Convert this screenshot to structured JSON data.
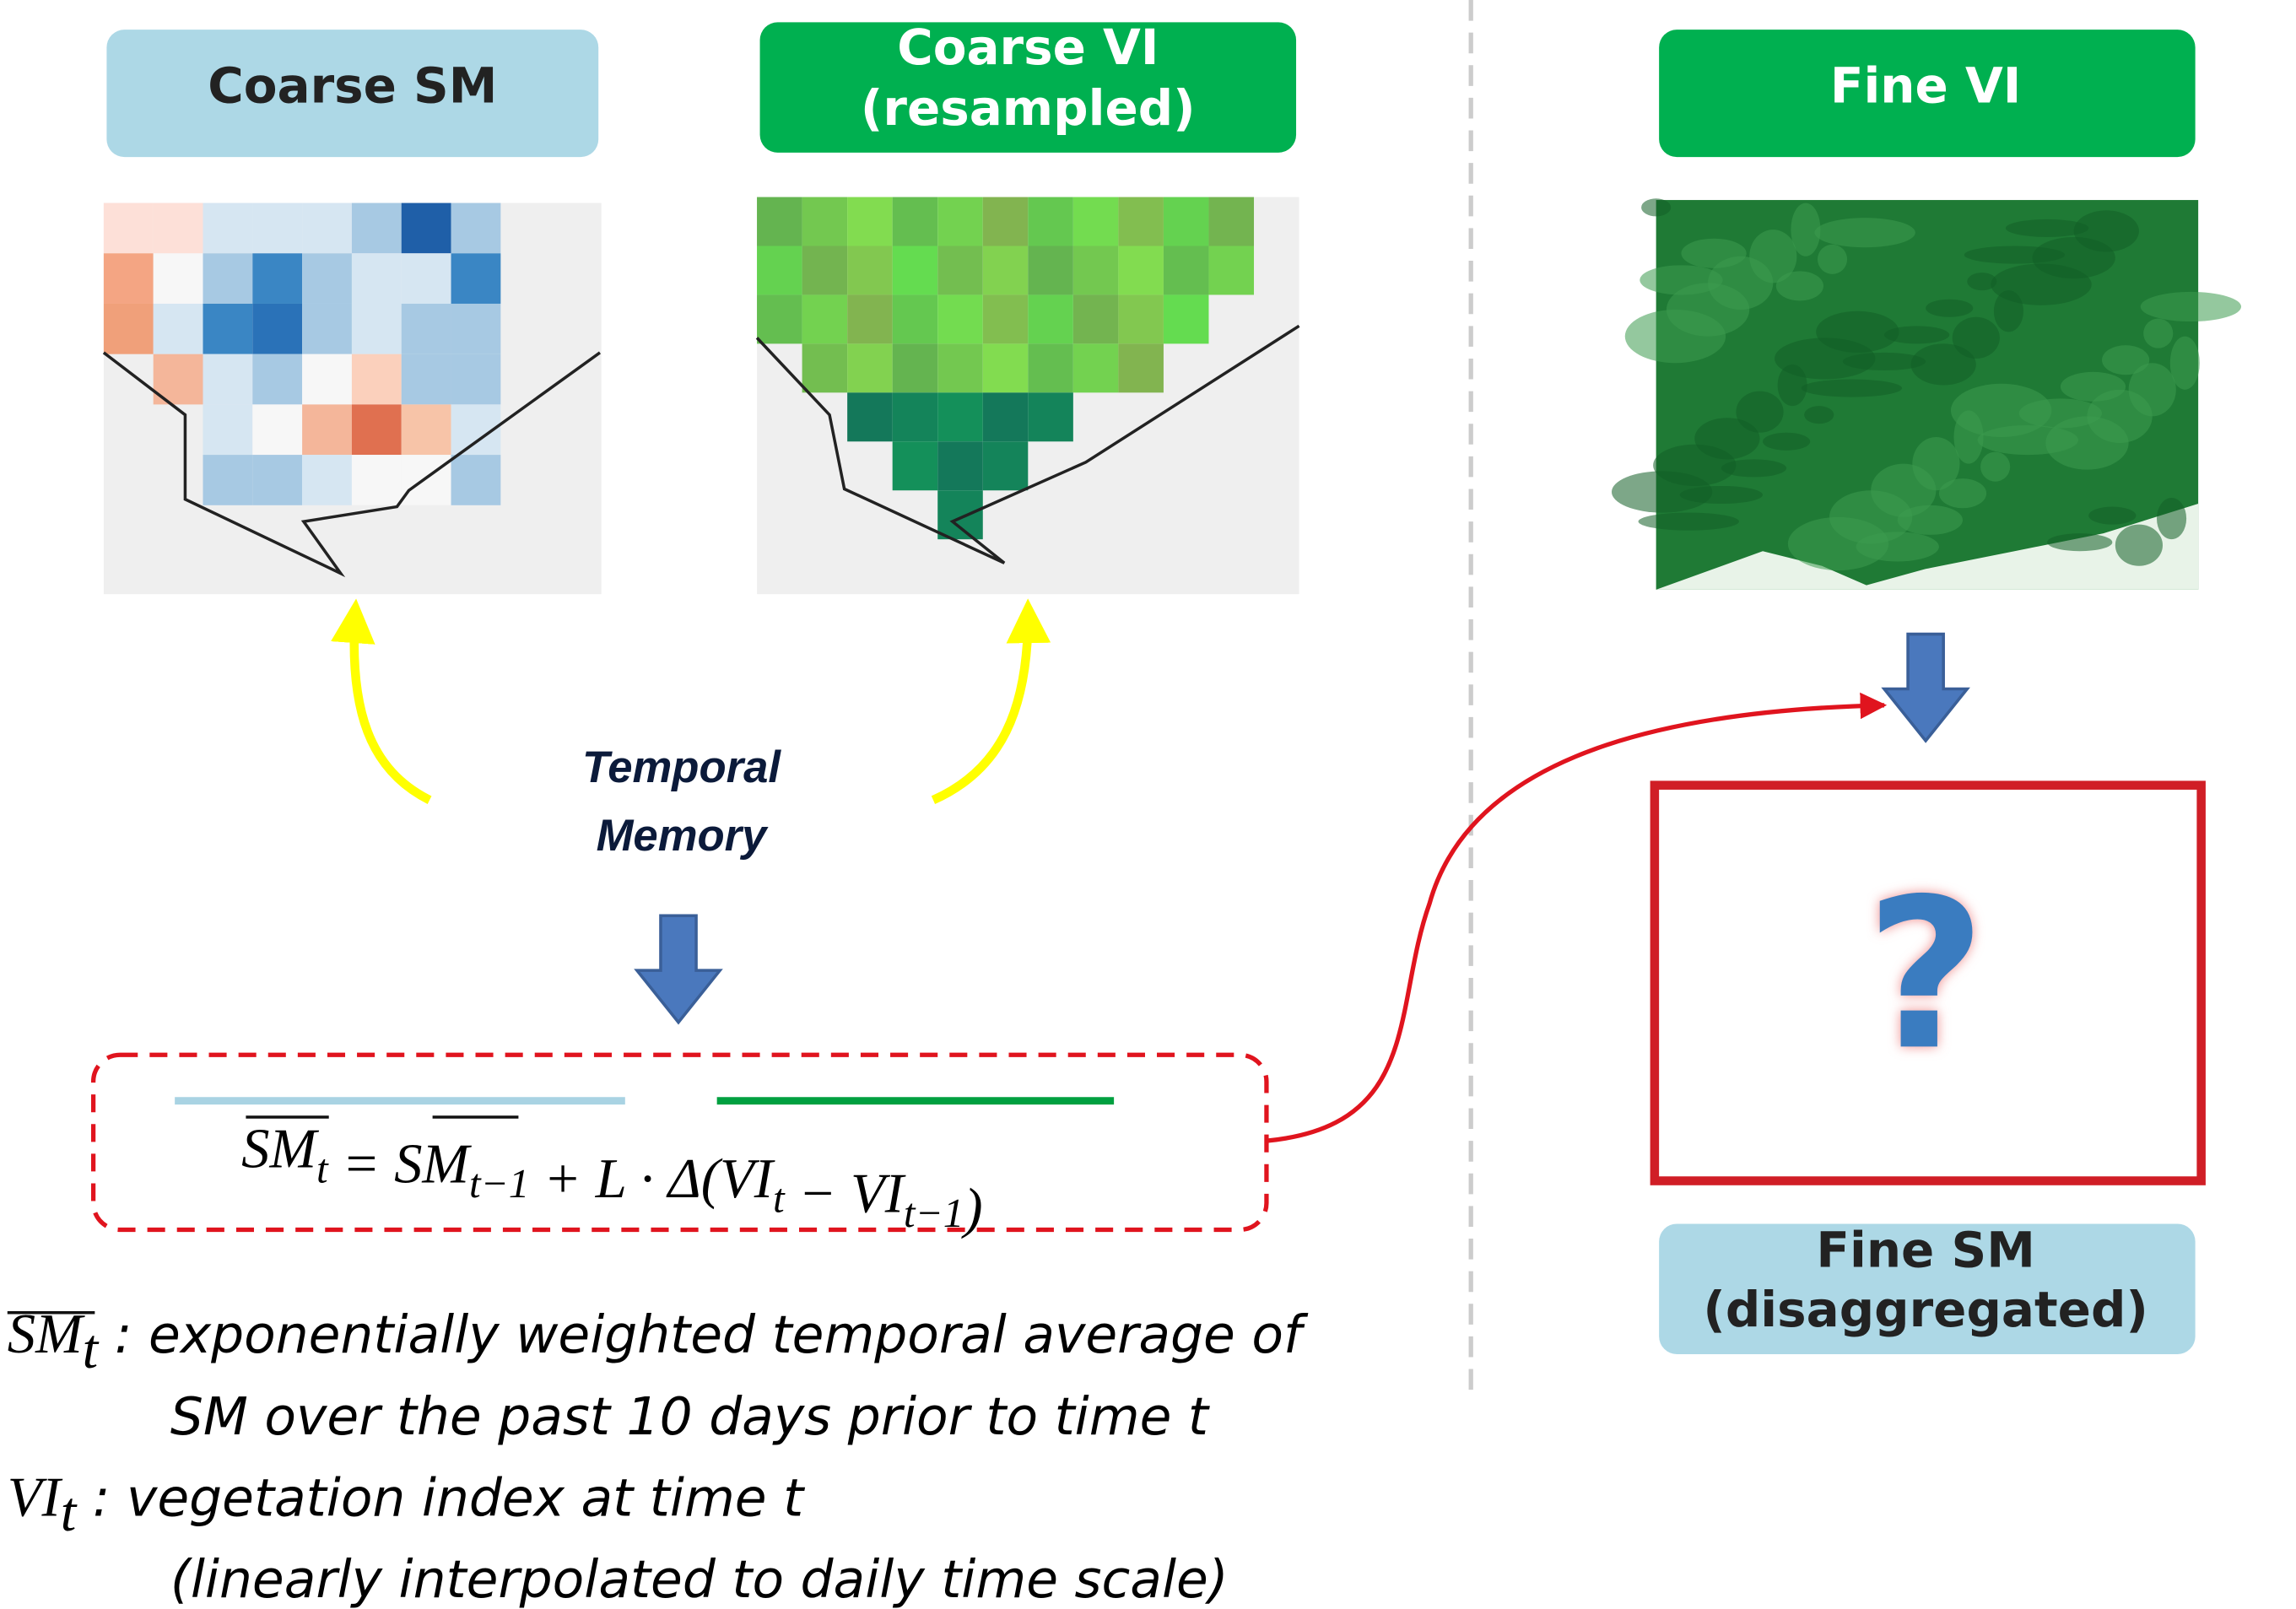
{
  "panels": {
    "coarse_sm": "Coarse SM",
    "coarse_vi": [
      "Coarse VI",
      "(resampled)"
    ],
    "fine_vi": "Fine VI",
    "fine_sm": [
      "Fine SM",
      "(disaggregated)"
    ]
  },
  "memory_label": [
    "Temporal",
    "Memory"
  ],
  "unknown_mark": "?",
  "formula": [
    {
      "text": "SM",
      "sub": "t"
    },
    {
      "text": " = "
    },
    {
      "text": "SM",
      "sub": "t−1"
    },
    {
      "text": " + L · Δ(VI",
      "sub": "t"
    },
    {
      "text": " − VI",
      "sub": "t−1"
    },
    {
      "text": ")"
    }
  ],
  "legend": [
    {
      "symbol": "SM",
      "sub": "t",
      "text": " : exponentially weighted temporal average of",
      "continuation": "SM over the past 10 days prior to time t"
    },
    {
      "symbol": "VI",
      "sub": "t",
      "text": " : vegetation index at time t",
      "continuation": "(linearly interpolated  to daily time scale)"
    }
  ]
}
